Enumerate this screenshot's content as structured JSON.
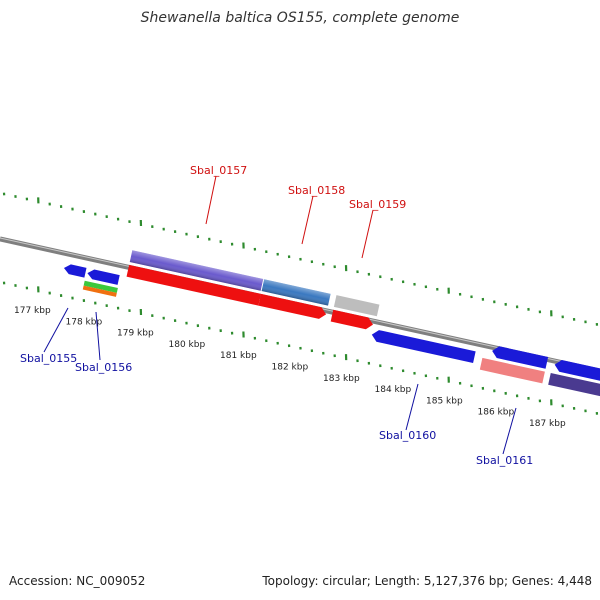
{
  "title": "Shewanella baltica OS155, complete genome",
  "footer": {
    "accession": "Accession: NC_009052",
    "summary": "Topology: circular; Length: 5,127,376 bp; Genes: 4,448"
  },
  "colors": {
    "backbone": "#8a8a8a",
    "tick_major": "#2e8b2e",
    "top_label": "#d01010",
    "bottom_label": "#1010a0"
  },
  "kbp_labels": [
    "177 kbp",
    "178 kbp",
    "179 kbp",
    "180 kbp",
    "181 kbp",
    "182 kbp",
    "183 kbp",
    "184 kbp",
    "185 kbp",
    "186 kbp",
    "187 kbp"
  ],
  "gene_labels_top": [
    "Sbal_0157",
    "Sbal_0158",
    "Sbal_0159"
  ],
  "gene_labels_bottom": [
    "Sbal_0155",
    "Sbal_0156",
    "Sbal_0160",
    "Sbal_0161"
  ]
}
